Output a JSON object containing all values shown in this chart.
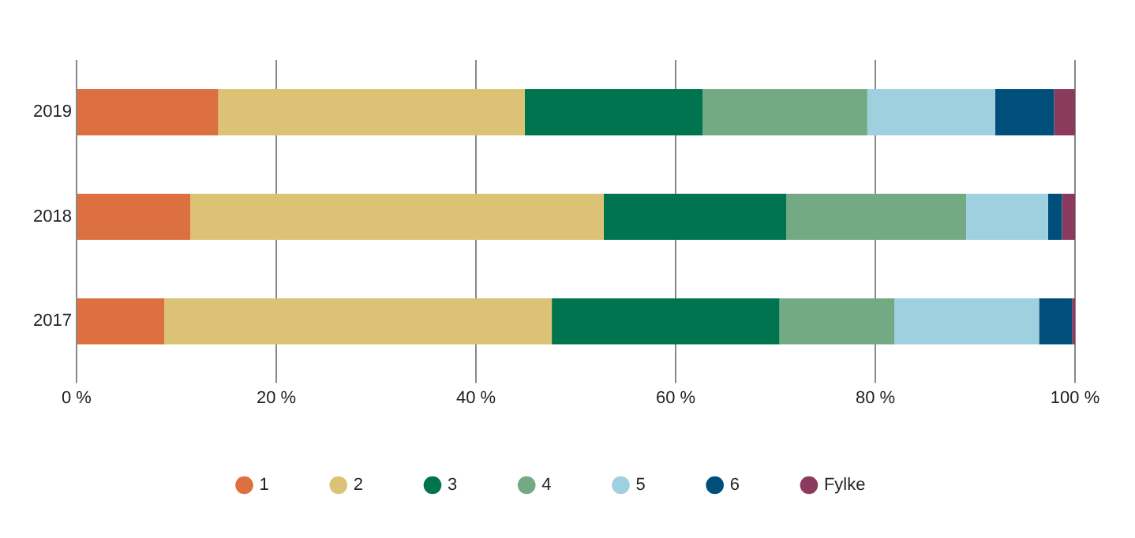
{
  "chart_data": {
    "type": "bar",
    "orientation": "horizontal",
    "stacked": true,
    "categories": [
      "2019",
      "2018",
      "2017"
    ],
    "series": [
      {
        "name": "1",
        "color": "#dc7040",
        "values": [
          14.2,
          11.4,
          8.8
        ]
      },
      {
        "name": "2",
        "color": "#dcc274",
        "values": [
          30.7,
          41.4,
          38.8
        ]
      },
      {
        "name": "3",
        "color": "#00734f",
        "values": [
          17.8,
          18.3,
          22.8
        ]
      },
      {
        "name": "4",
        "color": "#73aa83",
        "values": [
          16.5,
          18.0,
          11.5
        ]
      },
      {
        "name": "5",
        "color": "#9fd0e0",
        "values": [
          12.8,
          8.2,
          14.5
        ]
      },
      {
        "name": "6",
        "color": "#004e7a",
        "values": [
          5.9,
          1.4,
          3.3
        ]
      },
      {
        "name": "Fylke",
        "color": "#8b3a5e",
        "values": [
          2.1,
          1.3,
          0.3
        ]
      }
    ],
    "xlim": [
      0,
      100
    ],
    "xticks": [
      {
        "value": 0,
        "label": "0 %"
      },
      {
        "value": 20,
        "label": "20 %"
      },
      {
        "value": 40,
        "label": "40 %"
      },
      {
        "value": 60,
        "label": "60 %"
      },
      {
        "value": 80,
        "label": "80 %"
      },
      {
        "value": 100,
        "label": "100 %"
      }
    ],
    "grid": "x",
    "legend": "bottom",
    "marker": "circle"
  }
}
